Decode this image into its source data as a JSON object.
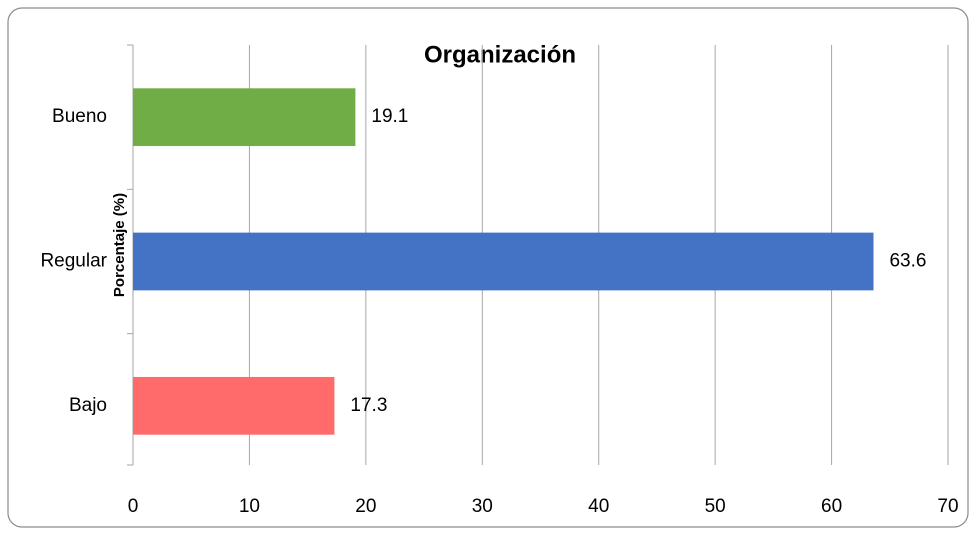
{
  "chart_data": {
    "type": "hbar",
    "title": "Organización",
    "y_label": "Porcentaje (%)",
    "categories": [
      "Bueno",
      "Regular",
      "Bajo"
    ],
    "values": [
      19.1,
      63.6,
      17.3
    ],
    "colors": [
      "#70ad47",
      "#4472c4",
      "#ff6b6b"
    ],
    "xlim": [
      0,
      70
    ],
    "xticks": [
      0,
      10,
      20,
      30,
      40,
      50,
      60,
      70
    ],
    "grid": true
  }
}
